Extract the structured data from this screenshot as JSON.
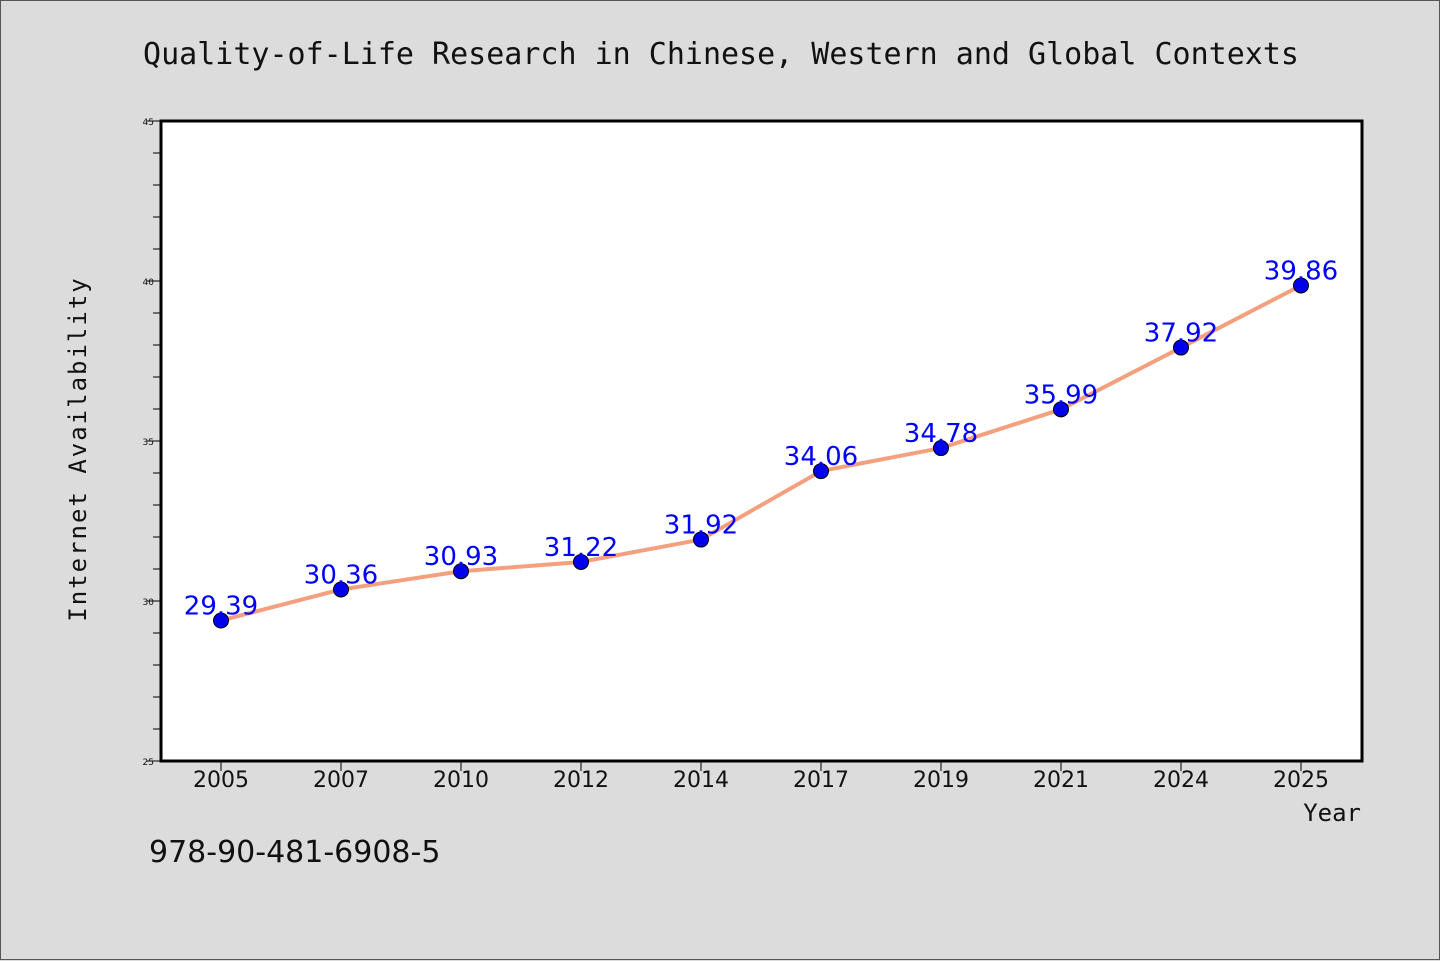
{
  "chart_data": {
    "type": "line",
    "title": "Quality-of-Life Research in Chinese, Western and Global Contexts",
    "xlabel": "Year",
    "ylabel": "Internet Availability",
    "categories": [
      "2005",
      "2007",
      "2010",
      "2012",
      "2014",
      "2017",
      "2019",
      "2021",
      "2024",
      "2025"
    ],
    "series": [
      {
        "values": [
          29.39,
          30.36,
          30.93,
          31.22,
          31.92,
          34.06,
          34.78,
          35.99,
          37.92,
          39.86
        ],
        "labels": [
          "29.39",
          "30.36",
          "30.93",
          "31.22",
          "31.92",
          "34.06",
          "34.78",
          "35.99",
          "37.92",
          "39.86"
        ],
        "line_color": "#f4a07e",
        "marker_color": "#0000ee",
        "label_color": "#0000ff"
      }
    ],
    "ylim": [
      25,
      45
    ],
    "y_ticks": [
      "25",
      "30",
      "35",
      "40",
      "45"
    ],
    "grid": false,
    "background": "#dcdcdc",
    "plot_background": "#ffffff"
  },
  "footer": {
    "isbn": "978-90-481-6908-5"
  }
}
